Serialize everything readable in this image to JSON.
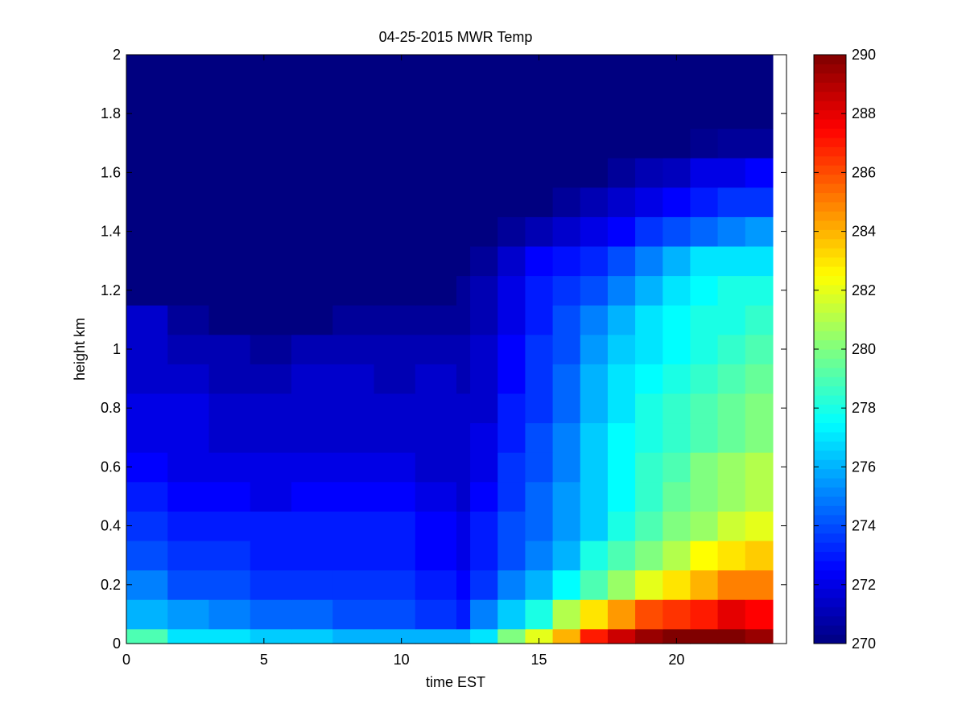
{
  "chart_data": {
    "type": "heatmap",
    "title": "04-25-2015 MWR Temp",
    "xlabel": "time EST",
    "ylabel": "height km",
    "xlim": [
      0,
      24
    ],
    "ylim": [
      0,
      2
    ],
    "xticks": [
      0,
      5,
      10,
      15,
      20
    ],
    "yticks": [
      0,
      0.2,
      0.4,
      0.6,
      0.8,
      1,
      1.2,
      1.4,
      1.6,
      1.8,
      2
    ],
    "x_edges": [
      0,
      1.5,
      3,
      4.5,
      6,
      7.5,
      9,
      10.5,
      12,
      12.5,
      13.5,
      14.5,
      15.5,
      16.5,
      17.5,
      18.5,
      19.5,
      20.5,
      21.5,
      22.5,
      23.5
    ],
    "x_data_max": 23.5,
    "y_edges": [
      0,
      0.05,
      0.15,
      0.25,
      0.35,
      0.45,
      0.55,
      0.65,
      0.75,
      0.85,
      0.95,
      1.05,
      1.15,
      1.25,
      1.35,
      1.45,
      1.55,
      1.65,
      1.75,
      2.0
    ],
    "values": [
      [
        279,
        277,
        277,
        276.5,
        276.5,
        276,
        276,
        276,
        276,
        277,
        280,
        282,
        284,
        287,
        288.5,
        289.5,
        290,
        290,
        290,
        289.5
      ],
      [
        276,
        275.5,
        275,
        274.5,
        274.5,
        274,
        274,
        273.5,
        273,
        275,
        276.5,
        278,
        281,
        283,
        284.5,
        286,
        286.5,
        287,
        288,
        287.5
      ],
      [
        275,
        274,
        274,
        273.5,
        273.5,
        273.5,
        273.5,
        273,
        272.5,
        273.5,
        275,
        276,
        277.5,
        279,
        280.5,
        282,
        283,
        284,
        285,
        285
      ],
      [
        274,
        273.5,
        273.5,
        273,
        273,
        273,
        273,
        272.5,
        272,
        273,
        274,
        275,
        276,
        278,
        279,
        280,
        281,
        282.5,
        283,
        283.5
      ],
      [
        273.5,
        273,
        273,
        273,
        273,
        273,
        273,
        272.5,
        272,
        273,
        274,
        274.5,
        275.5,
        276.5,
        278,
        279,
        280,
        280.5,
        281.5,
        282
      ],
      [
        273,
        272.5,
        272.5,
        272,
        272.5,
        272.5,
        272.5,
        272,
        271.5,
        272.5,
        273.5,
        274.5,
        275.5,
        276.5,
        277.5,
        278.5,
        279.5,
        280,
        280.5,
        281
      ],
      [
        272.5,
        272,
        272,
        272,
        272,
        272,
        272,
        271.5,
        271.5,
        272,
        273.5,
        274,
        275,
        276.5,
        277.5,
        278.5,
        279,
        280,
        280.5,
        281
      ],
      [
        272,
        272,
        271.5,
        271.5,
        271.5,
        271.5,
        271.5,
        271.5,
        271.5,
        272,
        273,
        274,
        275,
        276.5,
        277.5,
        278,
        278.5,
        279,
        279.5,
        280
      ],
      [
        272,
        272,
        271.5,
        271.5,
        271.5,
        271.5,
        271.5,
        271.5,
        271.5,
        271.5,
        273,
        273.5,
        274.5,
        276,
        277,
        278,
        278.5,
        279,
        279.5,
        280
      ],
      [
        271.5,
        271.5,
        271,
        271,
        271.5,
        271.5,
        271,
        271.5,
        271,
        271.5,
        272.5,
        273.5,
        274.5,
        276,
        277,
        277.5,
        278,
        278.5,
        279,
        279.5
      ],
      [
        271.5,
        271,
        271,
        270.5,
        271,
        271,
        271,
        271,
        271,
        271.5,
        272.5,
        273.5,
        274,
        275.5,
        276.5,
        277,
        277.5,
        278,
        278.5,
        279
      ],
      [
        271.5,
        270.5,
        270,
        270,
        270,
        270.5,
        270.5,
        270.5,
        270.5,
        271,
        272,
        273,
        274,
        275,
        276,
        277,
        277.5,
        278,
        278,
        278.5
      ],
      [
        270,
        270,
        270,
        270,
        270,
        270,
        270,
        270,
        270.5,
        271,
        272,
        273,
        273.5,
        274,
        275,
        276,
        277,
        277.5,
        278,
        278
      ],
      [
        270,
        270,
        270,
        270,
        270,
        270,
        270,
        270,
        270,
        270.5,
        271.5,
        272.5,
        272.8,
        273.2,
        274,
        275,
        276,
        277,
        277,
        277
      ],
      [
        270,
        270,
        270,
        270,
        270,
        270,
        270,
        270,
        270,
        270,
        270.5,
        271,
        271.5,
        272,
        272.5,
        273.5,
        274,
        274.5,
        275,
        275.5
      ],
      [
        270,
        270,
        270,
        270,
        270,
        270,
        270,
        270,
        270,
        270,
        270,
        270,
        270.5,
        271,
        271.5,
        272,
        272.5,
        273,
        273.5,
        273.5
      ],
      [
        270,
        270,
        270,
        270,
        270,
        270,
        270,
        270,
        270,
        270,
        270,
        270,
        270,
        270,
        270.5,
        271,
        271.2,
        272,
        272,
        272.5
      ],
      [
        270,
        270,
        270,
        270,
        270,
        270,
        270,
        270,
        270,
        270,
        270,
        270,
        270,
        270,
        270,
        270,
        270,
        270.3,
        270.5,
        270.5
      ],
      [
        270,
        270,
        270,
        270,
        270,
        270,
        270,
        270,
        270,
        270,
        270,
        270,
        270,
        270,
        270,
        270,
        270,
        270,
        270,
        270
      ]
    ],
    "colorbar": {
      "colormap": "jet",
      "limits": [
        270,
        290
      ],
      "ticks": [
        270,
        272,
        274,
        276,
        278,
        280,
        282,
        284,
        286,
        288,
        290
      ]
    },
    "grid": false,
    "legend": "none"
  }
}
